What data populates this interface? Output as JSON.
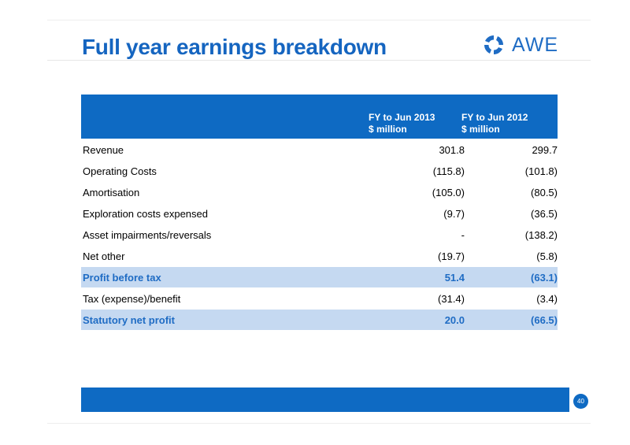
{
  "slide": {
    "title": "Full year earnings breakdown",
    "page_number": "40"
  },
  "logo": {
    "text": "AWE",
    "icon": "awe-logo-icon",
    "color": "#1f6cc4"
  },
  "table": {
    "columns": [
      {
        "line1": "FY to Jun 2013",
        "line2": "$ million"
      },
      {
        "line1": "FY to Jun 2012",
        "line2": "$ million"
      }
    ],
    "rows": [
      {
        "label": "Revenue",
        "fy2013": "301.8",
        "fy2012": "299.7",
        "highlight": false
      },
      {
        "label": "Operating Costs",
        "fy2013": "(115.8)",
        "fy2012": "(101.8)",
        "highlight": false
      },
      {
        "label": "Amortisation",
        "fy2013": "(105.0)",
        "fy2012": "(80.5)",
        "highlight": false
      },
      {
        "label": "Exploration costs expensed",
        "fy2013": "(9.7)",
        "fy2012": "(36.5)",
        "highlight": false
      },
      {
        "label": "Asset impairments/reversals",
        "fy2013": "-",
        "fy2012": "(138.2)",
        "highlight": false
      },
      {
        "label": "Net other",
        "fy2013": "(19.7)",
        "fy2012": "(5.8)",
        "highlight": false
      },
      {
        "label": "Profit before tax",
        "fy2013": "51.4",
        "fy2012": "(63.1)",
        "highlight": true
      },
      {
        "label": "Tax (expense)/benefit",
        "fy2013": "(31.4)",
        "fy2012": "(3.4)",
        "highlight": false
      },
      {
        "label": "Statutory net profit",
        "fy2013": "20.0",
        "fy2012": "(66.5)",
        "highlight": true
      }
    ]
  },
  "colors": {
    "accent": "#0e6ac3",
    "title": "#1565c0",
    "highlight_row": "#c5d9f1"
  }
}
